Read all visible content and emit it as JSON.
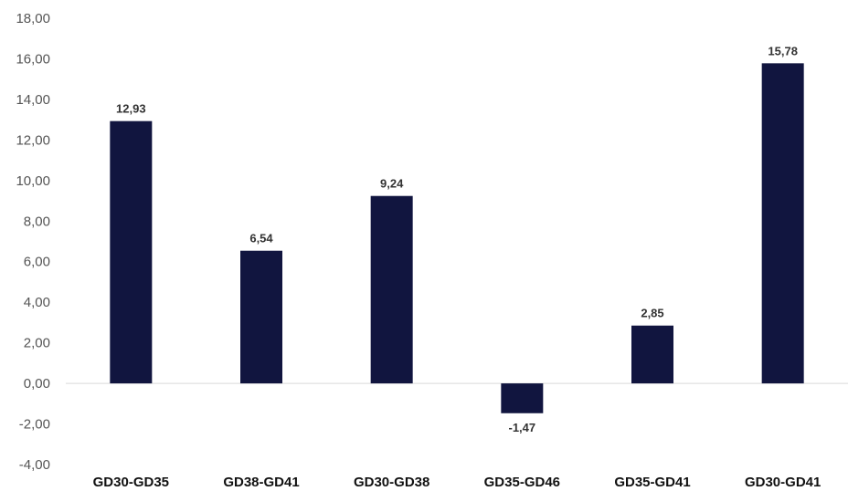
{
  "chart_data": {
    "type": "bar",
    "categories": [
      "GD30-GD35",
      "GD38-GD41",
      "GD30-GD38",
      "GD35-GD46",
      "GD35-GD41",
      "GD30-GD41"
    ],
    "values": [
      12.93,
      6.54,
      9.24,
      -1.47,
      2.85,
      15.78
    ],
    "data_labels": [
      "12,93",
      "6,54",
      "9,24",
      "-1,47",
      "2,85",
      "15,78"
    ],
    "yticks": [
      18,
      16,
      14,
      12,
      10,
      8,
      6,
      4,
      2,
      0,
      -2,
      -4
    ],
    "ytick_labels": [
      "18,00",
      "16,00",
      "14,00",
      "12,00",
      "10,00",
      "8,00",
      "6,00",
      "4,00",
      "2,00",
      "0,00",
      "-2,00",
      "-4,00"
    ],
    "ylim": [
      -4,
      18
    ],
    "title": "",
    "xlabel": "",
    "ylabel": "",
    "grid": false,
    "legend": "none",
    "bar_color": "#11153f",
    "axis_color": "#d9d9d9"
  }
}
